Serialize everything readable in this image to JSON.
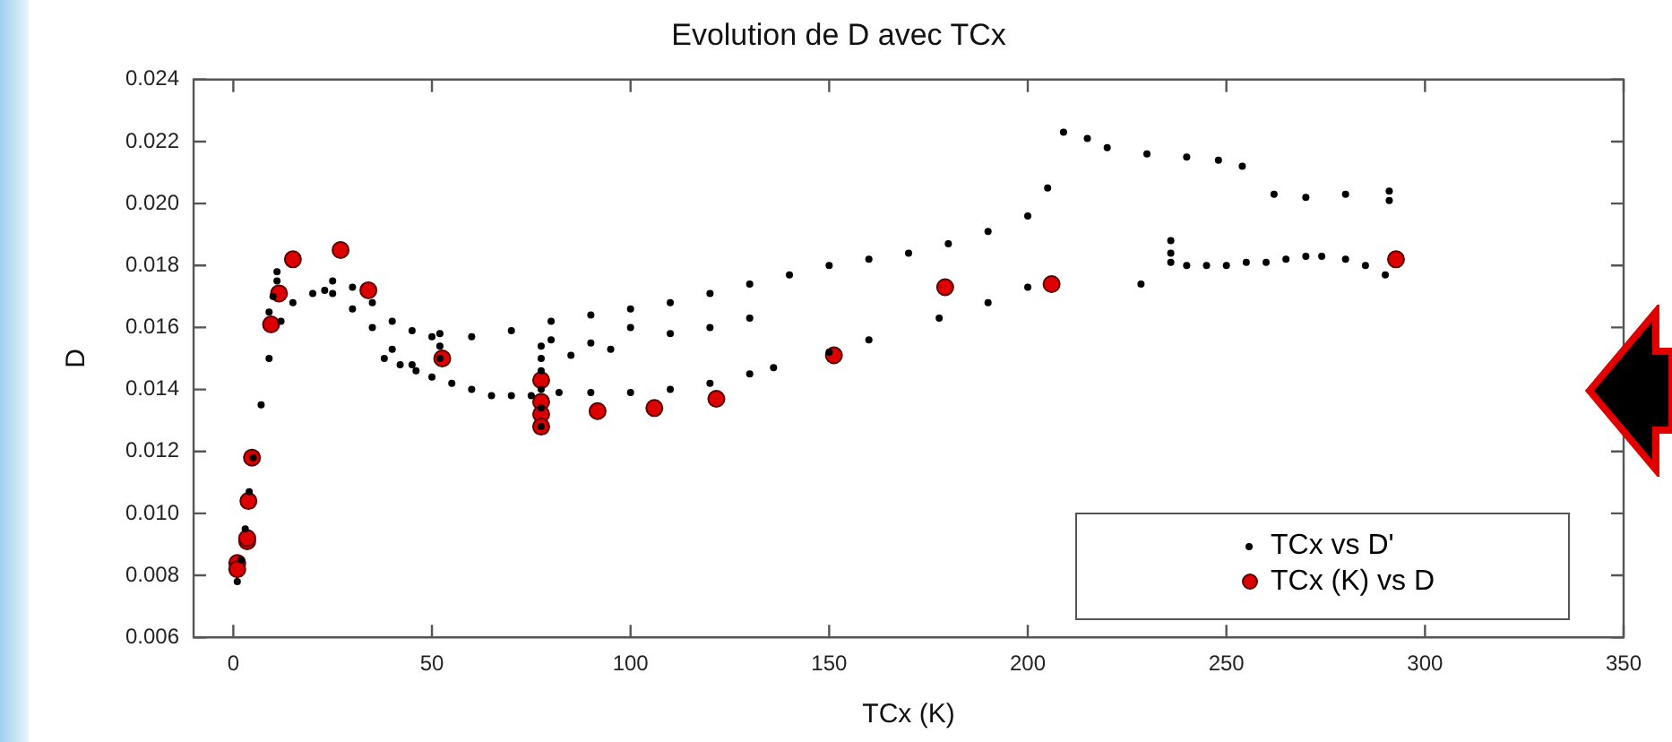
{
  "chart_data": {
    "type": "scatter",
    "title": "Evolution de D avec TCx",
    "xlabel": "TCx (K)",
    "ylabel": "D",
    "xlim": [
      -10,
      350
    ],
    "xticks": [
      0,
      50,
      100,
      150,
      200,
      250,
      300,
      350
    ],
    "ylim": [
      0.006,
      0.024
    ],
    "yticks": [
      0.006,
      0.008,
      {
        "value": 0.01,
        "label": "0.010"
      },
      0.012,
      0.014,
      0.016,
      0.018,
      {
        "value": 0.02,
        "label": "0.020"
      },
      0.022,
      0.024
    ],
    "grid": false,
    "legend": "bottom right",
    "marker": "circle",
    "series": [
      {
        "name": "TCx vs D'",
        "color": "#000000",
        "x": [
          1,
          2,
          3,
          4,
          5,
          7,
          9,
          12,
          15,
          20,
          23,
          25,
          30,
          35,
          40,
          45,
          50,
          55,
          60,
          65,
          70,
          75,
          77.5,
          77.5,
          77.5,
          77.5,
          77.5,
          77.5,
          80,
          82,
          90,
          100,
          110,
          120,
          130,
          136,
          150,
          160,
          177.7,
          190,
          200,
          9,
          10,
          11,
          11,
          52,
          52,
          52,
          25,
          30,
          35,
          40,
          45,
          50,
          60,
          70,
          80,
          90,
          100,
          110,
          120,
          130,
          140,
          150,
          160,
          170,
          180,
          190,
          200,
          205,
          209,
          215,
          220,
          230,
          240,
          248,
          254,
          262,
          270,
          280,
          291,
          291,
          38,
          42,
          46,
          85,
          90,
          95,
          100,
          110,
          120,
          130,
          228.5,
          236,
          236,
          236,
          240,
          245,
          250,
          255,
          260,
          265,
          270,
          274,
          280,
          285,
          290
        ],
        "values": [
          0.0078,
          0.0085,
          0.0095,
          0.0107,
          0.0118,
          0.0135,
          0.015,
          0.0162,
          0.0168,
          0.0171,
          0.0172,
          0.0171,
          0.0166,
          0.016,
          0.0153,
          0.0148,
          0.0144,
          0.0142,
          0.014,
          0.0138,
          0.0138,
          0.0138,
          0.0128,
          0.0134,
          0.014,
          0.0146,
          0.015,
          0.0154,
          0.0156,
          0.0139,
          0.0139,
          0.0139,
          0.014,
          0.0142,
          0.0145,
          0.0147,
          0.0152,
          0.0156,
          0.0163,
          0.0168,
          0.0173,
          0.0165,
          0.017,
          0.0175,
          0.0178,
          0.015,
          0.0154,
          0.0158,
          0.0175,
          0.0173,
          0.0168,
          0.0162,
          0.0159,
          0.0157,
          0.0157,
          0.0159,
          0.0162,
          0.0164,
          0.0166,
          0.0168,
          0.0171,
          0.0174,
          0.0177,
          0.018,
          0.0182,
          0.0184,
          0.0187,
          0.0191,
          0.0196,
          0.0205,
          0.0223,
          0.0221,
          0.0218,
          0.0216,
          0.0215,
          0.0214,
          0.0212,
          0.0203,
          0.0202,
          0.0203,
          0.0204,
          0.0201,
          0.015,
          0.0148,
          0.0146,
          0.0151,
          0.0155,
          0.0153,
          0.016,
          0.0158,
          0.016,
          0.0163,
          0.0174,
          0.0188,
          0.0184,
          0.0181,
          0.018,
          0.018,
          0.018,
          0.0181,
          0.0181,
          0.0182,
          0.0183,
          0.0183,
          0.0182,
          0.018,
          0.0177
        ]
      },
      {
        "name": "TCx (K) vs D",
        "color": "#dd0000",
        "x": [
          1,
          1,
          3.5,
          3.5,
          3.8,
          4.7,
          9.5,
          11.5,
          15,
          27,
          34,
          52.6,
          77.5,
          77.5,
          77.5,
          77.5,
          91.7,
          106,
          121.6,
          151.2,
          179.2,
          206,
          292.7
        ],
        "values": [
          0.0084,
          0.0082,
          0.0091,
          0.0092,
          0.0104,
          0.0118,
          0.0161,
          0.0171,
          0.0182,
          0.0185,
          0.0172,
          0.015,
          0.0143,
          0.0136,
          0.0132,
          0.0128,
          0.0133,
          0.0134,
          0.0137,
          0.0151,
          0.0173,
          0.0174,
          0.0182
        ]
      }
    ]
  }
}
